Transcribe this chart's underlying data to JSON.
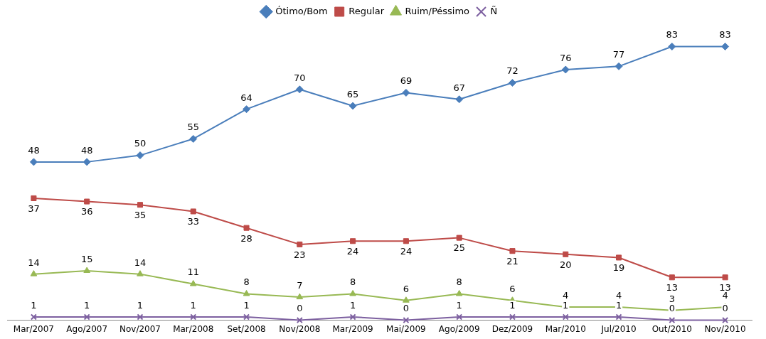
{
  "chart_data": {
    "type": "line",
    "legend": "top",
    "data_labels": true,
    "grid": false,
    "line_style": "solid",
    "categories": [
      "Mar/2007",
      "Ago/2007",
      "Nov/2007",
      "Mar/2008",
      "Set/2008",
      "Nov/2008",
      "Mar/2009",
      "Mai/2009",
      "Ago/2009",
      "Dez/2009",
      "Mar/2010",
      "Jul/2010",
      "Out/2010",
      "Nov/2010"
    ],
    "series": [
      {
        "name": "Ótimo/Bom",
        "color": "#4a7ebb",
        "marker": "diamond",
        "values": [
          48,
          48,
          50,
          55,
          64,
          70,
          65,
          69,
          67,
          72,
          76,
          77,
          83,
          83
        ]
      },
      {
        "name": "Regular",
        "color": "#be4b48",
        "marker": "square",
        "values": [
          37,
          36,
          35,
          33,
          28,
          23,
          24,
          24,
          25,
          21,
          20,
          19,
          13,
          13
        ]
      },
      {
        "name": "Ruim/Péssimo",
        "color": "#98b954",
        "marker": "triangle",
        "values": [
          14,
          15,
          14,
          11,
          8,
          7,
          8,
          6,
          8,
          6,
          4,
          4,
          3,
          4
        ]
      },
      {
        "name": "Ñ",
        "color": "#7d60a0",
        "marker": "cross",
        "values": [
          1,
          1,
          1,
          1,
          1,
          0,
          1,
          0,
          1,
          1,
          1,
          1,
          0,
          0
        ]
      }
    ]
  }
}
